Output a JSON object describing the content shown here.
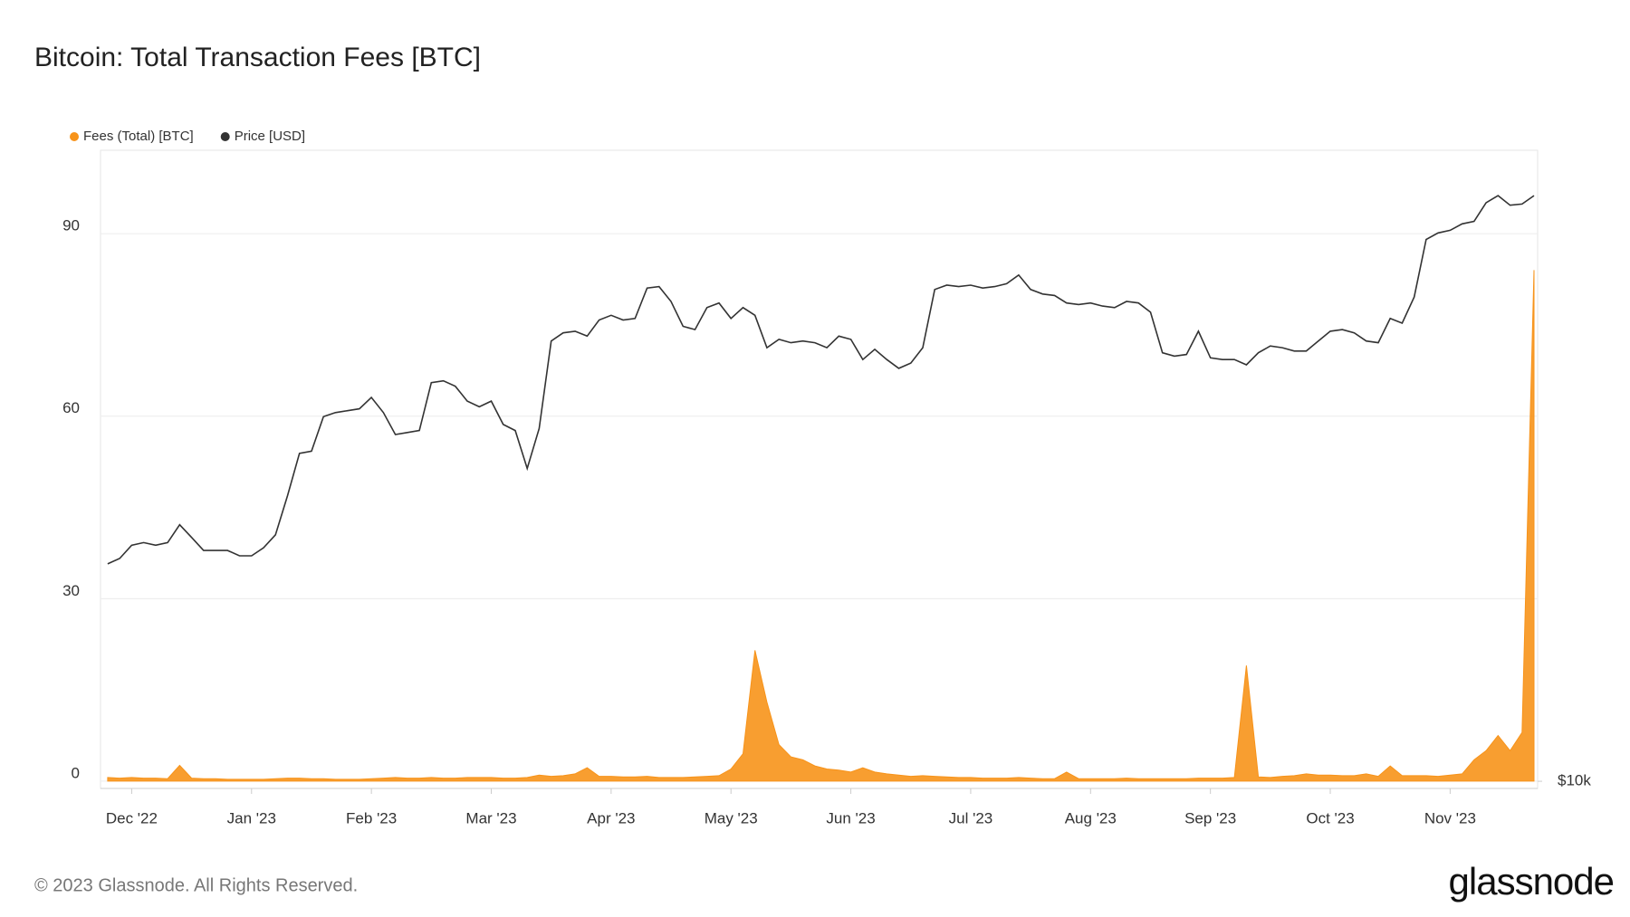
{
  "chart_data": {
    "type": "line",
    "title": "Bitcoin: Total Transaction Fees [BTC]",
    "x": [
      -0.2,
      -0.1,
      0,
      0.1,
      0.2,
      0.3,
      0.4,
      0.5,
      0.6,
      0.7,
      0.8,
      0.9,
      1,
      1.1,
      1.2,
      1.3,
      1.4,
      1.5,
      1.6,
      1.7,
      1.8,
      1.9,
      2,
      2.1,
      2.2,
      2.3,
      2.4,
      2.5,
      2.6,
      2.7,
      2.8,
      2.9,
      3,
      3.1,
      3.2,
      3.3,
      3.4,
      3.5,
      3.6,
      3.7,
      3.8,
      3.9,
      4,
      4.1,
      4.2,
      4.3,
      4.4,
      4.5,
      4.6,
      4.7,
      4.8,
      4.9,
      5,
      5.1,
      5.2,
      5.3,
      5.4,
      5.5,
      5.6,
      5.7,
      5.8,
      5.9,
      6,
      6.1,
      6.2,
      6.3,
      6.4,
      6.5,
      6.6,
      6.7,
      6.8,
      6.9,
      7,
      7.1,
      7.2,
      7.3,
      7.4,
      7.5,
      7.6,
      7.7,
      7.8,
      7.9,
      8,
      8.1,
      8.2,
      8.3,
      8.4,
      8.5,
      8.6,
      8.7,
      8.8,
      8.9,
      9,
      9.1,
      9.2,
      9.3,
      9.4,
      9.5,
      9.6,
      9.7,
      9.8,
      9.9,
      10,
      10.1,
      10.2,
      10.3,
      10.4,
      10.5,
      10.6,
      10.7,
      10.8,
      10.9,
      11,
      11.1,
      11.2,
      11.3,
      11.4,
      11.5,
      11.6,
      11.7
    ],
    "series": [
      {
        "name": "Fees (Total) [BTC]",
        "color": "#f7931a",
        "values": [
          0.6,
          0.5,
          0.6,
          0.5,
          0.5,
          0.4,
          2.6,
          0.5,
          0.4,
          0.4,
          0.3,
          0.3,
          0.3,
          0.3,
          0.4,
          0.5,
          0.5,
          0.4,
          0.4,
          0.3,
          0.3,
          0.3,
          0.4,
          0.5,
          0.6,
          0.5,
          0.5,
          0.6,
          0.5,
          0.5,
          0.6,
          0.6,
          0.6,
          0.5,
          0.5,
          0.6,
          1.0,
          0.8,
          0.9,
          1.2,
          2.2,
          0.8,
          0.8,
          0.7,
          0.7,
          0.8,
          0.6,
          0.6,
          0.6,
          0.7,
          0.8,
          0.9,
          2.0,
          4.5,
          21.5,
          13,
          6,
          4,
          3.5,
          2.5,
          2.0,
          1.8,
          1.5,
          2.2,
          1.5,
          1.2,
          1.0,
          0.8,
          0.9,
          0.8,
          0.7,
          0.6,
          0.6,
          0.5,
          0.5,
          0.5,
          0.6,
          0.5,
          0.4,
          0.4,
          1.5,
          0.4,
          0.4,
          0.4,
          0.4,
          0.5,
          0.4,
          0.4,
          0.4,
          0.4,
          0.4,
          0.5,
          0.5,
          0.5,
          0.6,
          19.0,
          0.7,
          0.6,
          0.8,
          0.9,
          1.2,
          1.0,
          1.0,
          0.9,
          0.9,
          1.2,
          0.8,
          2.5,
          0.9,
          0.9,
          0.9,
          0.8,
          1.0,
          1.2,
          3.5,
          5.0,
          7.5,
          5.0,
          8.0,
          84
        ]
      },
      {
        "name": "Price [USD]",
        "color": "#333333",
        "axis": "y2",
        "values": [
          16300,
          16500,
          17000,
          17100,
          17000,
          17100,
          17800,
          17300,
          16800,
          16800,
          16800,
          16600,
          16600,
          16900,
          17400,
          19000,
          20900,
          21000,
          22700,
          22900,
          23000,
          23100,
          23700,
          22900,
          21800,
          21900,
          22000,
          24500,
          24600,
          24300,
          23500,
          23200,
          23500,
          22300,
          22000,
          20200,
          22100,
          26900,
          27400,
          27500,
          27200,
          28200,
          28500,
          28200,
          28300,
          30300,
          30400,
          29400,
          27800,
          27600,
          29000,
          29300,
          28300,
          29000,
          28500,
          26500,
          27000,
          26800,
          26900,
          26800,
          26500,
          27200,
          27000,
          25800,
          26400,
          25800,
          25300,
          25600,
          26500,
          30200,
          30500,
          30400,
          30500,
          30300,
          30400,
          30600,
          31200,
          30200,
          29900,
          29800,
          29300,
          29200,
          29300,
          29100,
          29000,
          29400,
          29300,
          28700,
          26200,
          26000,
          26100,
          27500,
          25900,
          25800,
          25800,
          25500,
          26200,
          26600,
          26500,
          26300,
          26300,
          26900,
          27500,
          27600,
          27400,
          26900,
          26800,
          28300,
          28000,
          29700,
          33800,
          34300,
          34500,
          35000,
          35200,
          36700,
          37300,
          36500,
          36600,
          37300
        ]
      }
    ],
    "xlim": [
      -0.26,
      11.73
    ],
    "xticks": [
      {
        "value": 0,
        "label": "Dec '22"
      },
      {
        "value": 1,
        "label": "Jan '23"
      },
      {
        "value": 2,
        "label": "Feb '23"
      },
      {
        "value": 3,
        "label": "Mar '23"
      },
      {
        "value": 4,
        "label": "Apr '23"
      },
      {
        "value": 5,
        "label": "May '23"
      },
      {
        "value": 6,
        "label": "Jun '23"
      },
      {
        "value": 7,
        "label": "Jul '23"
      },
      {
        "value": 8,
        "label": "Aug '23"
      },
      {
        "value": 9,
        "label": "Sep '23"
      },
      {
        "value": 10,
        "label": "Oct '23"
      },
      {
        "value": 11,
        "label": "Nov '23"
      }
    ],
    "ylim": [
      -1.2,
      103.7
    ],
    "yticks": [
      0,
      30,
      60,
      90
    ],
    "y2lim": [
      9840,
      41300
    ],
    "y2ticks": [
      {
        "value": 10000,
        "label": "$10k"
      }
    ],
    "y2scale": "log",
    "grid": true
  },
  "footer": "© 2023 Glassnode. All Rights Reserved.",
  "logo": "glassnode"
}
